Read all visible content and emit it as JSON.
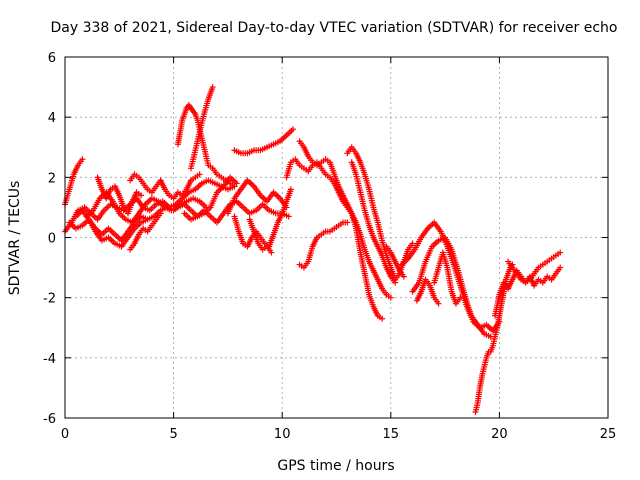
{
  "chart_data": {
    "type": "scatter",
    "title": "Day 338 of 2021, Sidereal Day-to-day VTEC variation (SDTVAR) for receiver echo",
    "xlabel": "GPS time / hours",
    "ylabel": "SDTVAR / TECUs",
    "xlim": [
      0,
      25
    ],
    "ylim": [
      -6,
      6
    ],
    "xticks": [
      0,
      5,
      10,
      15,
      20,
      25
    ],
    "yticks": [
      -6,
      -4,
      -2,
      0,
      2,
      4,
      6
    ],
    "grid": true,
    "marker": "plus",
    "color": "#ff0000",
    "series": [
      {
        "x": [
          0.0,
          0.2,
          0.4,
          0.6,
          0.8
        ],
        "y": [
          1.1,
          1.6,
          2.1,
          2.4,
          2.6
        ]
      },
      {
        "x": [
          0.0,
          0.3,
          0.6,
          0.9,
          1.2,
          1.5,
          1.8,
          2.1,
          2.4,
          2.7,
          3.0,
          3.3,
          3.6,
          3.9,
          4.2,
          4.5,
          4.8,
          5.1,
          5.4,
          5.7,
          6.0,
          6.3,
          6.6,
          6.9,
          7.2,
          7.5,
          7.8
        ],
        "y": [
          0.2,
          0.5,
          0.9,
          1.0,
          0.8,
          0.6,
          0.9,
          1.1,
          1.0,
          0.9,
          1.1,
          1.3,
          1.0,
          0.9,
          1.1,
          1.2,
          1.0,
          1.1,
          1.3,
          1.5,
          1.6,
          1.8,
          1.9,
          1.8,
          1.7,
          1.6,
          1.7
        ]
      },
      {
        "x": [
          0.2,
          0.5,
          0.8,
          1.1,
          1.4,
          1.7,
          2.0,
          2.3,
          2.6,
          2.9,
          3.2,
          3.5,
          3.8,
          4.1,
          4.4,
          4.7,
          5.0,
          5.3,
          5.6,
          5.9,
          6.2,
          6.5
        ],
        "y": [
          0.5,
          0.3,
          0.4,
          0.6,
          0.2,
          -0.1,
          0.0,
          -0.2,
          -0.3,
          0.0,
          0.3,
          0.5,
          0.6,
          0.7,
          0.9,
          1.0,
          0.9,
          1.1,
          1.2,
          1.3,
          1.2,
          1.0
        ]
      },
      {
        "x": [
          0.5,
          0.8,
          1.1,
          1.4,
          1.7,
          2.0,
          2.3,
          2.6,
          2.9,
          3.2,
          3.5,
          3.8
        ],
        "y": [
          0.7,
          0.9,
          0.6,
          0.3,
          0.1,
          0.3,
          0.1,
          -0.1,
          0.2,
          0.5,
          0.7,
          0.6
        ]
      },
      {
        "x": [
          1.0,
          1.3,
          1.6,
          1.9,
          2.2,
          2.5,
          2.8,
          3.1,
          3.4,
          3.7,
          4.0,
          4.3,
          4.6,
          4.9,
          5.2,
          5.5,
          5.8,
          6.1,
          6.4,
          6.7,
          7.0,
          7.3,
          7.6,
          7.9
        ],
        "y": [
          0.7,
          0.9,
          1.3,
          1.5,
          1.2,
          0.8,
          0.6,
          0.5,
          0.8,
          1.1,
          1.3,
          1.2,
          1.0,
          0.9,
          1.0,
          1.1,
          0.9,
          0.7,
          0.8,
          1.0,
          1.5,
          1.7,
          2.0,
          1.8
        ]
      },
      {
        "x": [
          1.5,
          1.7,
          1.9,
          2.1,
          2.3,
          2.5,
          2.7,
          2.9,
          3.1,
          3.3,
          3.5
        ],
        "y": [
          2.0,
          1.6,
          1.3,
          1.6,
          1.7,
          1.4,
          1.0,
          0.8,
          1.2,
          1.5,
          1.4
        ]
      },
      {
        "x": [
          3.0,
          3.2,
          3.4,
          3.6,
          3.8,
          4.0,
          4.2,
          4.4,
          4.6,
          4.8,
          5.0,
          5.2,
          5.4,
          5.6,
          5.8,
          6.0,
          6.2
        ],
        "y": [
          1.9,
          2.1,
          2.0,
          1.8,
          1.6,
          1.5,
          1.7,
          1.9,
          1.6,
          1.4,
          1.3,
          1.5,
          1.4,
          1.6,
          1.9,
          2.0,
          2.1
        ]
      },
      {
        "x": [
          3.0,
          3.2,
          3.4,
          3.6,
          3.8,
          4.0,
          4.2,
          4.4
        ],
        "y": [
          -0.4,
          -0.2,
          0.1,
          0.3,
          0.2,
          0.4,
          0.6,
          0.8
        ]
      },
      {
        "x": [
          5.2,
          5.3,
          5.4,
          5.5,
          5.6,
          5.7,
          5.8,
          5.9,
          6.0,
          6.1,
          6.2,
          6.3,
          6.4,
          6.5,
          6.6,
          6.8,
          7.0,
          7.2,
          7.4,
          7.6,
          7.8
        ],
        "y": [
          3.1,
          3.5,
          3.9,
          4.1,
          4.3,
          4.4,
          4.3,
          4.2,
          4.1,
          3.9,
          3.6,
          3.3,
          3.0,
          2.7,
          2.4,
          2.3,
          2.1,
          2.0,
          1.9,
          1.8,
          1.7
        ]
      },
      {
        "x": [
          5.8,
          6.0,
          6.2,
          6.4,
          6.6,
          6.8
        ],
        "y": [
          2.3,
          2.9,
          3.5,
          4.1,
          4.6,
          5.0
        ]
      },
      {
        "x": [
          5.5,
          5.8,
          6.1,
          6.4,
          6.7,
          7.0,
          7.3,
          7.6,
          7.9,
          8.2,
          8.5,
          8.8,
          9.1,
          9.4,
          9.7,
          10.0,
          10.3
        ],
        "y": [
          0.8,
          0.6,
          0.7,
          0.9,
          0.7,
          0.5,
          0.8,
          1.1,
          1.2,
          1.0,
          0.8,
          0.9,
          1.1,
          0.9,
          0.8,
          0.8,
          0.7
        ]
      },
      {
        "x": [
          7.8,
          8.1,
          8.4,
          8.7,
          9.0,
          9.3,
          9.6,
          9.9,
          10.2,
          10.5
        ],
        "y": [
          2.9,
          2.8,
          2.8,
          2.9,
          2.9,
          3.0,
          3.1,
          3.2,
          3.4,
          3.6
        ]
      },
      {
        "x": [
          7.5,
          7.8,
          8.1,
          8.4,
          8.7,
          9.0,
          9.3,
          9.6,
          9.9,
          10.2
        ],
        "y": [
          0.8,
          1.3,
          1.6,
          1.9,
          1.7,
          1.4,
          1.2,
          1.5,
          1.3,
          1.0
        ]
      },
      {
        "x": [
          7.8,
          8.0,
          8.2,
          8.4,
          8.6,
          8.8,
          9.0,
          9.2,
          9.4,
          9.6,
          9.8,
          10.0,
          10.2,
          10.4
        ],
        "y": [
          0.7,
          0.2,
          -0.2,
          -0.3,
          0.0,
          0.2,
          0.0,
          -0.2,
          -0.3,
          0.1,
          0.5,
          0.8,
          1.2,
          1.6
        ]
      },
      {
        "x": [
          8.5,
          8.7,
          8.9,
          9.1,
          9.3,
          9.5
        ],
        "y": [
          0.6,
          0.2,
          -0.2,
          -0.4,
          -0.3,
          -0.5
        ]
      },
      {
        "x": [
          10.2,
          10.4,
          10.6,
          10.8,
          11.0,
          11.2,
          11.4,
          11.6,
          11.8,
          12.0,
          12.2,
          12.4,
          12.6,
          12.8,
          13.0,
          13.2,
          13.4,
          13.6,
          13.8,
          14.0,
          14.2,
          14.4,
          14.6
        ],
        "y": [
          2.0,
          2.5,
          2.6,
          2.4,
          2.3,
          2.2,
          2.4,
          2.5,
          2.3,
          2.1,
          2.0,
          1.8,
          1.5,
          1.2,
          1.0,
          0.8,
          0.3,
          -0.5,
          -1.2,
          -1.9,
          -2.3,
          -2.6,
          -2.7
        ]
      },
      {
        "x": [
          10.8,
          11.0,
          11.2,
          11.4,
          11.6,
          11.8,
          12.0,
          12.2,
          12.4,
          12.6,
          12.8,
          13.0,
          13.2,
          13.4,
          13.6,
          13.8,
          14.0,
          14.2,
          14.4,
          14.6,
          14.8,
          15.0
        ],
        "y": [
          3.2,
          3.0,
          2.7,
          2.5,
          2.4,
          2.5,
          2.6,
          2.5,
          2.1,
          1.7,
          1.4,
          1.1,
          0.8,
          0.5,
          0.1,
          -0.4,
          -0.8,
          -1.1,
          -1.4,
          -1.7,
          -1.9,
          -2.0
        ]
      },
      {
        "x": [
          10.8,
          11.0,
          11.2,
          11.4,
          11.6,
          11.8,
          12.0,
          12.2,
          12.4,
          12.6,
          12.8,
          13.0
        ],
        "y": [
          -0.9,
          -1.0,
          -0.8,
          -0.3,
          0.0,
          0.1,
          0.2,
          0.2,
          0.3,
          0.4,
          0.5,
          0.5
        ]
      },
      {
        "x": [
          13.0,
          13.2,
          13.4,
          13.6,
          13.8,
          14.0,
          14.2,
          14.4,
          14.6,
          14.8,
          15.0,
          15.2,
          15.4,
          15.6,
          15.8,
          16.0
        ],
        "y": [
          2.8,
          3.0,
          2.8,
          2.5,
          2.1,
          1.6,
          1.0,
          0.5,
          -0.1,
          -0.6,
          -1.0,
          -1.4,
          -1.2,
          -0.8,
          -0.4,
          -0.2
        ]
      },
      {
        "x": [
          13.2,
          13.4,
          13.6,
          13.8,
          14.0,
          14.2,
          14.4,
          14.6,
          14.8,
          15.0,
          15.2
        ],
        "y": [
          2.5,
          2.1,
          1.5,
          0.9,
          0.4,
          0.0,
          -0.3,
          -0.6,
          -1.0,
          -1.3,
          -1.5
        ]
      },
      {
        "x": [
          14.8,
          15.0,
          15.2,
          15.4,
          15.6
        ],
        "y": [
          -0.3,
          -0.5,
          -0.8,
          -1.1,
          -1.3
        ]
      },
      {
        "x": [
          15.5,
          15.8,
          16.1,
          16.4,
          16.7,
          17.0,
          17.3,
          17.6,
          17.9,
          18.2,
          18.5,
          18.8,
          19.1,
          19.4,
          19.7,
          20.0
        ],
        "y": [
          -0.9,
          -0.7,
          -0.4,
          0.0,
          0.3,
          0.5,
          0.2,
          -0.3,
          -0.9,
          -1.6,
          -2.3,
          -2.8,
          -3.0,
          -2.9,
          -3.1,
          -2.8
        ]
      },
      {
        "x": [
          16.0,
          16.3,
          16.6,
          16.9,
          17.2,
          17.5,
          17.8,
          18.1,
          18.4,
          18.7,
          19.0,
          19.3,
          19.6
        ],
        "y": [
          -1.8,
          -1.5,
          -0.8,
          -0.3,
          -0.1,
          0.0,
          -0.4,
          -1.1,
          -1.9,
          -2.6,
          -2.9,
          -3.2,
          -3.3
        ]
      },
      {
        "x": [
          16.2,
          16.4,
          16.6,
          16.8,
          17.0,
          17.2
        ],
        "y": [
          -2.1,
          -1.8,
          -1.4,
          -1.6,
          -2.0,
          -2.2
        ]
      },
      {
        "x": [
          17.0,
          17.2,
          17.4,
          17.6,
          17.8,
          18.0,
          18.2
        ],
        "y": [
          -1.5,
          -1.0,
          -0.5,
          -1.0,
          -1.8,
          -2.2,
          -2.0
        ]
      },
      {
        "x": [
          18.9,
          19.0,
          19.1,
          19.2,
          19.3,
          19.4,
          19.5,
          19.6,
          19.7,
          19.8,
          19.9,
          20.0,
          20.1,
          20.2,
          20.3,
          20.4,
          20.5,
          20.6
        ],
        "y": [
          -5.8,
          -5.5,
          -5.0,
          -4.6,
          -4.3,
          -4.0,
          -3.8,
          -3.8,
          -3.6,
          -3.3,
          -3.0,
          -2.6,
          -2.2,
          -1.8,
          -1.4,
          -1.2,
          -1.0,
          -0.9
        ]
      },
      {
        "x": [
          19.8,
          20.0,
          20.2,
          20.4,
          20.6,
          20.8,
          21.0,
          21.2,
          21.4,
          21.6,
          21.8,
          22.0,
          22.2,
          22.4,
          22.6,
          22.8
        ],
        "y": [
          -2.6,
          -1.9,
          -1.5,
          -1.7,
          -1.4,
          -1.1,
          -1.3,
          -1.5,
          -1.4,
          -1.2,
          -1.0,
          -0.9,
          -0.8,
          -0.7,
          -0.6,
          -0.5
        ]
      },
      {
        "x": [
          20.4,
          20.6,
          20.8,
          21.0,
          21.2,
          21.4,
          21.6,
          21.8,
          22.0,
          22.2,
          22.4,
          22.6,
          22.8
        ],
        "y": [
          -0.8,
          -1.0,
          -1.2,
          -1.4,
          -1.5,
          -1.3,
          -1.6,
          -1.4,
          -1.5,
          -1.3,
          -1.4,
          -1.2,
          -1.0
        ]
      }
    ]
  }
}
